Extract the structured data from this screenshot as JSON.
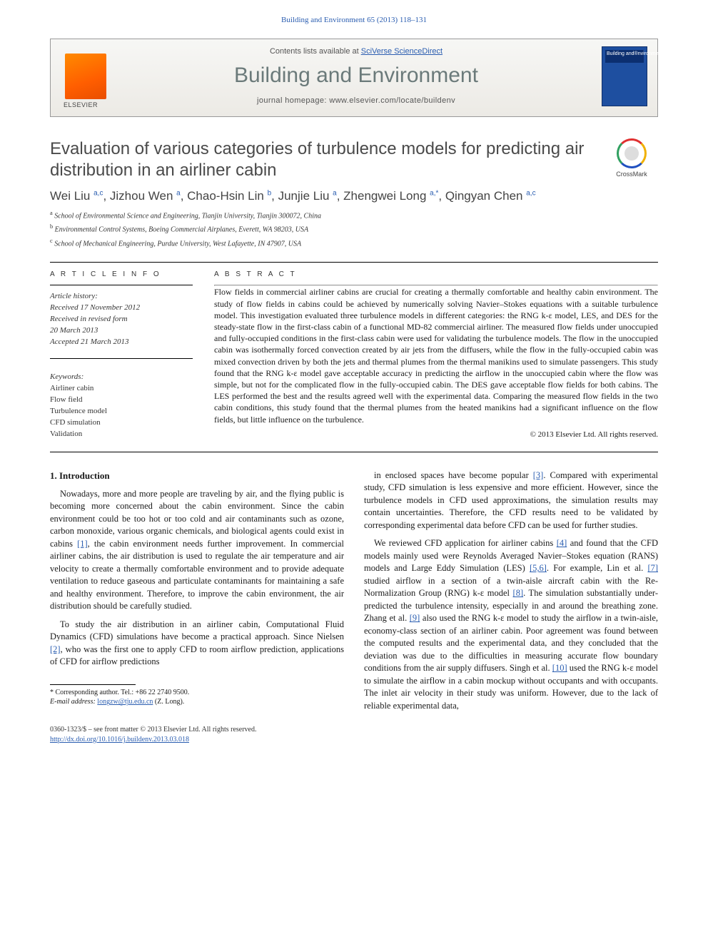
{
  "header": {
    "citation": "Building and Environment 65 (2013) 118–131",
    "citation_link": "#",
    "contents_line_prefix": "Contents lists available at ",
    "contents_link_text": "SciVerse ScienceDirect",
    "journal_name": "Building and Environment",
    "homepage_prefix": "journal homepage: ",
    "homepage_url": "www.elsevier.com/locate/buildenv",
    "publisher_logo_alt": "ELSEVIER",
    "cover_alt": "Building and Environment"
  },
  "crossmark_label": "CrossMark",
  "title": "Evaluation of various categories of turbulence models for predicting air distribution in an airliner cabin",
  "authors_html": "Wei Liu <sup>a,c</sup>, Jizhou Wen <sup>a</sup>, Chao-Hsin Lin <sup>b</sup>, Junjie Liu <sup>a</sup>, Zhengwei Long <sup>a,*</sup>, Qingyan Chen <sup>a,c</sup>",
  "affiliations": [
    {
      "sup": "a",
      "text": "School of Environmental Science and Engineering, Tianjin University, Tianjin 300072, China"
    },
    {
      "sup": "b",
      "text": "Environmental Control Systems, Boeing Commercial Airplanes, Everett, WA 98203, USA"
    },
    {
      "sup": "c",
      "text": "School of Mechanical Engineering, Purdue University, West Lafayette, IN 47907, USA"
    }
  ],
  "article_info_label": "A R T I C L E   I N F O",
  "abstract_label": "A B S T R A C T",
  "history_label": "Article history:",
  "history_lines": [
    "Received 17 November 2012",
    "Received in revised form",
    "20 March 2013",
    "Accepted 21 March 2013"
  ],
  "keywords_label": "Keywords:",
  "keywords": [
    "Airliner cabin",
    "Flow field",
    "Turbulence model",
    "CFD simulation",
    "Validation"
  ],
  "abstract": "Flow fields in commercial airliner cabins are crucial for creating a thermally comfortable and healthy cabin environment. The study of flow fields in cabins could be achieved by numerically solving Navier–Stokes equations with a suitable turbulence model. This investigation evaluated three turbulence models in different categories: the RNG k-ε model, LES, and DES for the steady-state flow in the first-class cabin of a functional MD-82 commercial airliner. The measured flow fields under unoccupied and fully-occupied conditions in the first-class cabin were used for validating the turbulence models. The flow in the unoccupied cabin was isothermally forced convection created by air jets from the diffusers, while the flow in the fully-occupied cabin was mixed convection driven by both the jets and thermal plumes from the thermal manikins used to simulate passengers. This study found that the RNG k-ε model gave acceptable accuracy in predicting the airflow in the unoccupied cabin where the flow was simple, but not for the complicated flow in the fully-occupied cabin. The DES gave acceptable flow fields for both cabins. The LES performed the best and the results agreed well with the experimental data. Comparing the measured flow fields in the two cabin conditions, this study found that the thermal plumes from the heated manikins had a significant influence on the flow fields, but little influence on the turbulence.",
  "copyright": "© 2013 Elsevier Ltd. All rights reserved.",
  "intro_heading": "1.  Introduction",
  "col1_paras": [
    "Nowadays, more and more people are traveling by air, and the flying public is becoming more concerned about the cabin environment. Since the cabin environment could be too hot or too cold and air contaminants such as ozone, carbon monoxide, various organic chemicals, and biological agents could exist in cabins [1], the cabin environment needs further improvement. In commercial airliner cabins, the air distribution is used to regulate the air temperature and air velocity to create a thermally comfortable environment and to provide adequate ventilation to reduce gaseous and particulate contaminants for maintaining a safe and healthy environment. Therefore, to improve the cabin environment, the air distribution should be carefully studied.",
    "To study the air distribution in an airliner cabin, Computational Fluid Dynamics (CFD) simulations have become a practical approach. Since Nielsen [2], who was the first one to apply CFD to room airflow prediction, applications of CFD for airflow predictions"
  ],
  "col2_paras": [
    "in enclosed spaces have become popular [3]. Compared with experimental study, CFD simulation is less expensive and more efficient. However, since the turbulence models in CFD used approximations, the simulation results may contain uncertainties. Therefore, the CFD results need to be validated by corresponding experimental data before CFD can be used for further studies.",
    "We reviewed CFD application for airliner cabins [4] and found that the CFD models mainly used were Reynolds Averaged Navier–Stokes equation (RANS) models and Large Eddy Simulation (LES) [5,6]. For example, Lin et al. [7] studied airflow in a section of a twin-aisle aircraft cabin with the Re-Normalization Group (RNG) k-ε model [8]. The simulation substantially under-predicted the turbulence intensity, especially in and around the breathing zone. Zhang et al. [9] also used the RNG k-ε model to study the airflow in a twin-aisle, economy-class section of an airliner cabin. Poor agreement was found between the computed results and the experimental data, and they concluded that the deviation was due to the difficulties in measuring accurate flow boundary conditions from the air supply diffusers. Singh et al. [10] used the RNG k-ε model to simulate the airflow in a cabin mockup without occupants and with occupants. The inlet air velocity in their study was uniform. However, due to the lack of reliable experimental data,"
  ],
  "footnote": {
    "corr_label": "* Corresponding author. Tel.: +86 22 2740 9500.",
    "email_label": "E-mail address: ",
    "email": "longzw@tju.edu.cn",
    "email_suffix": " (Z. Long)."
  },
  "footer": {
    "issn_line": "0360-1323/$ – see front matter © 2013 Elsevier Ltd. All rights reserved.",
    "doi_url": "http://dx.doi.org/10.1016/j.buildenv.2013.03.018"
  },
  "colors": {
    "link": "#2a5db0",
    "title_gray": "#4a4a4a",
    "journal_gray": "#6b7a7a",
    "elsevier_orange": "#ff6a00",
    "cover_blue": "#1e4fa0"
  }
}
